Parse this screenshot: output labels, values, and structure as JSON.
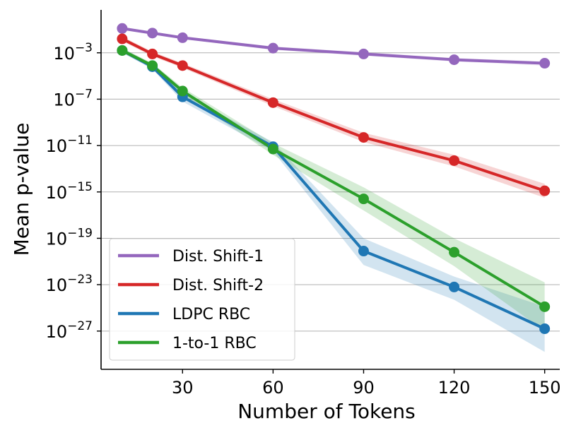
{
  "chart_data": {
    "type": "line",
    "title": "",
    "xlabel": "Number of Tokens",
    "ylabel": "Mean p-value",
    "yscale": "log",
    "xlim": [
      3,
      155
    ],
    "ylim_log10": [
      -30.3,
      0.7
    ],
    "x_ticks": [
      30,
      60,
      90,
      120,
      150
    ],
    "y_ticks": [
      {
        "exp": -3,
        "base": "10",
        "sup": "−3"
      },
      {
        "exp": -7,
        "base": "10",
        "sup": "−7"
      },
      {
        "exp": -11,
        "base": "10",
        "sup": "−11"
      },
      {
        "exp": -15,
        "base": "10",
        "sup": "−15"
      },
      {
        "exp": -19,
        "base": "10",
        "sup": "−19"
      },
      {
        "exp": -23,
        "base": "10",
        "sup": "−23"
      },
      {
        "exp": -27,
        "base": "10",
        "sup": "−27"
      }
    ],
    "grid": "horizontal",
    "legend_position": "lower-left",
    "x": [
      10,
      20,
      30,
      60,
      90,
      120,
      150
    ],
    "series": [
      {
        "name": "Dist. Shift-1",
        "color": "#9467bd",
        "log10_values": [
          -0.9,
          -1.3,
          -1.7,
          -2.6,
          -3.1,
          -3.6,
          -3.9
        ],
        "band_log10": [
          [
            -0.8,
            -1.0
          ],
          [
            -1.2,
            -1.4
          ],
          [
            -1.6,
            -1.8
          ],
          [
            -2.45,
            -2.75
          ],
          [
            -2.95,
            -3.25
          ],
          [
            -3.45,
            -3.75
          ],
          [
            -3.75,
            -4.1
          ]
        ]
      },
      {
        "name": "Dist. Shift-2",
        "color": "#d62728",
        "log10_values": [
          -1.8,
          -3.1,
          -4.1,
          -7.3,
          -10.3,
          -12.3,
          -14.9
        ],
        "band_log10": [
          [
            -1.6,
            -2.0
          ],
          [
            -2.9,
            -3.3
          ],
          [
            -3.9,
            -4.3
          ],
          [
            -7.0,
            -7.6
          ],
          [
            -9.9,
            -10.7
          ],
          [
            -11.8,
            -12.8
          ],
          [
            -14.3,
            -15.5
          ]
        ]
      },
      {
        "name": "LDPC RBC",
        "color": "#1f77b4",
        "log10_values": [
          -2.8,
          -4.2,
          -6.8,
          -11.1,
          -20.1,
          -23.2,
          -26.8
        ],
        "band_log10": [
          [
            -2.6,
            -3.0
          ],
          [
            -4.0,
            -4.4
          ],
          [
            -6.5,
            -7.2
          ],
          [
            -10.7,
            -11.5
          ],
          [
            -19.0,
            -21.3
          ],
          [
            -22.3,
            -24.3
          ],
          [
            -24.9,
            -28.8
          ]
        ]
      },
      {
        "name": "1-to-1 RBC",
        "color": "#2ca02c",
        "log10_values": [
          -2.8,
          -4.1,
          -6.3,
          -11.3,
          -15.6,
          -20.2,
          -24.9
        ],
        "band_log10": [
          [
            -2.6,
            -3.0
          ],
          [
            -3.9,
            -4.3
          ],
          [
            -6.0,
            -6.6
          ],
          [
            -10.8,
            -11.8
          ],
          [
            -14.6,
            -16.6
          ],
          [
            -19.0,
            -21.4
          ],
          [
            -22.8,
            -27.0
          ]
        ]
      }
    ]
  }
}
